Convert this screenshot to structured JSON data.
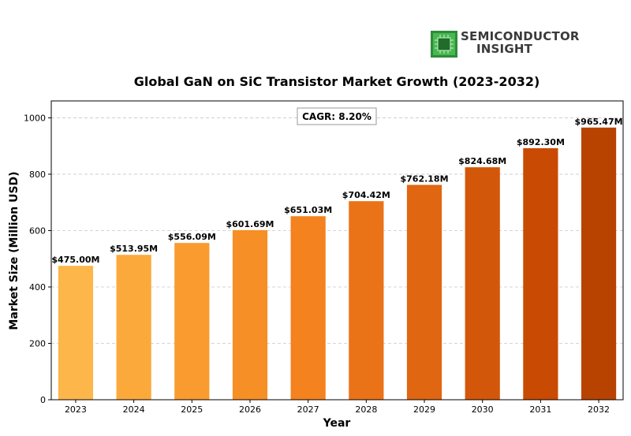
{
  "brand": {
    "line1": "SEMICONDUCTOR",
    "line2": "INSIGHT"
  },
  "chart_data": {
    "type": "bar",
    "title": "Global GaN on SiC Transistor Market Growth (2023-2032)",
    "xlabel": "Year",
    "ylabel": "Market Size (Million USD)",
    "categories": [
      "2023",
      "2024",
      "2025",
      "2026",
      "2027",
      "2028",
      "2029",
      "2030",
      "2031",
      "2032"
    ],
    "values": [
      475.0,
      513.95,
      556.09,
      601.69,
      651.03,
      704.42,
      762.18,
      824.68,
      892.3,
      965.47
    ],
    "data_labels": [
      "$475.00M",
      "$513.95M",
      "$556.09M",
      "$601.69M",
      "$651.03M",
      "$704.42M",
      "$762.18M",
      "$824.68M",
      "$892.30M",
      "$965.47M"
    ],
    "bar_colors": [
      "#fdb64a",
      "#fca93c",
      "#f99b2f",
      "#f68f25",
      "#f3821f",
      "#ea7317",
      "#e06611",
      "#d3570a",
      "#c94a02",
      "#b84300"
    ],
    "ylim": [
      0,
      1060
    ],
    "yticks": [
      0,
      200,
      400,
      600,
      800,
      1000
    ],
    "grid": "horizontal-dashed",
    "annotation": "CAGR: 8.20%"
  }
}
